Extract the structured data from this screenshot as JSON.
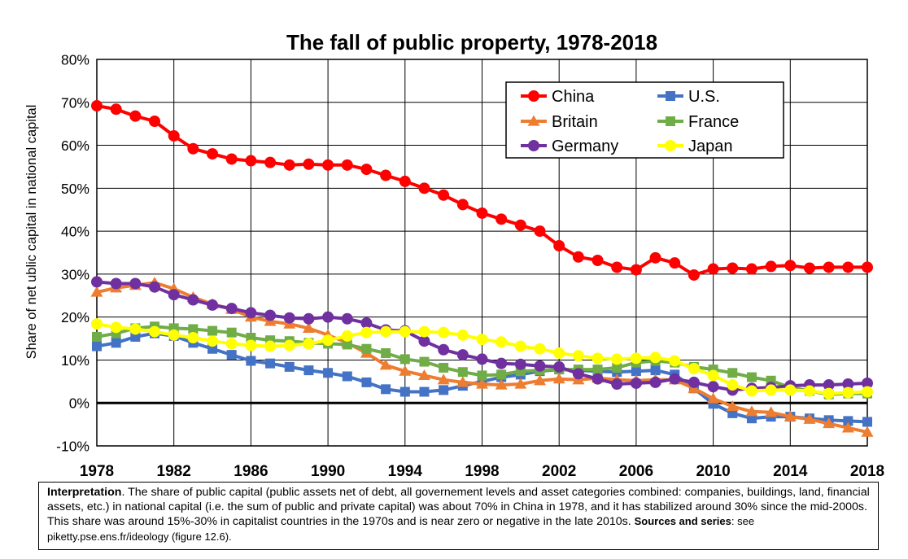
{
  "chart_data": {
    "type": "line",
    "title": "The fall of public property, 1978-2018",
    "ylabel": "Share of net ublic capital in national capital",
    "xlabel": "",
    "xlim": [
      1978,
      2018
    ],
    "ylim": [
      -10,
      80
    ],
    "x_ticks": [
      "1978",
      "1982",
      "1986",
      "1990",
      "1994",
      "1998",
      "2002",
      "2006",
      "2010",
      "2014",
      "2018"
    ],
    "y_ticks": [
      "-10%",
      "0%",
      "10%",
      "20%",
      "30%",
      "40%",
      "50%",
      "60%",
      "70%",
      "80%"
    ],
    "grid": true,
    "legend_position": "top-right",
    "x": [
      1978,
      1979,
      1980,
      1981,
      1982,
      1983,
      1984,
      1985,
      1986,
      1987,
      1988,
      1989,
      1990,
      1991,
      1992,
      1993,
      1994,
      1995,
      1996,
      1997,
      1998,
      1999,
      2000,
      2001,
      2002,
      2003,
      2004,
      2005,
      2006,
      2007,
      2008,
      2009,
      2010,
      2011,
      2012,
      2013,
      2014,
      2015,
      2016,
      2017,
      2018
    ],
    "series": [
      {
        "name": "China",
        "color": "#ff0000",
        "marker": "circle",
        "values": [
          69.2,
          68.4,
          66.8,
          65.6,
          62.2,
          59.2,
          58.0,
          56.8,
          56.4,
          56.0,
          55.4,
          55.6,
          55.4,
          55.4,
          54.4,
          53.0,
          51.6,
          50.0,
          48.4,
          46.2,
          44.2,
          42.8,
          41.4,
          40.0,
          36.6,
          34.0,
          33.2,
          31.6,
          31.0,
          33.8,
          32.6,
          29.8,
          31.2,
          31.4,
          31.2,
          31.8,
          32.0,
          31.4,
          31.6,
          31.6,
          31.6
        ]
      },
      {
        "name": "U.S.",
        "color": "#4472c4",
        "marker": "square",
        "values": [
          13.2,
          14.0,
          15.4,
          16.2,
          15.6,
          14.0,
          12.6,
          11.2,
          9.8,
          9.2,
          8.4,
          7.6,
          7.0,
          6.2,
          4.8,
          3.2,
          2.6,
          2.6,
          3.0,
          4.0,
          5.0,
          6.0,
          6.6,
          7.4,
          7.8,
          7.6,
          7.4,
          7.2,
          7.4,
          7.6,
          6.6,
          3.4,
          -0.2,
          -2.4,
          -3.6,
          -3.2,
          -3.2,
          -3.6,
          -4.0,
          -4.2,
          -4.4
        ]
      },
      {
        "name": "Britain",
        "color": "#ed7d31",
        "marker": "triangle",
        "values": [
          25.8,
          26.8,
          27.4,
          28.0,
          26.6,
          24.6,
          23.0,
          21.8,
          20.0,
          19.0,
          18.4,
          17.4,
          15.8,
          14.0,
          11.6,
          8.8,
          7.4,
          6.4,
          5.4,
          4.8,
          4.4,
          4.2,
          4.4,
          5.2,
          5.6,
          5.4,
          5.8,
          5.4,
          5.2,
          5.4,
          5.4,
          3.4,
          1.0,
          -0.8,
          -2.0,
          -2.2,
          -3.2,
          -3.8,
          -4.8,
          -5.8,
          -6.8
        ]
      },
      {
        "name": "France",
        "color": "#70ad47",
        "marker": "square",
        "values": [
          15.4,
          16.2,
          17.4,
          17.8,
          17.4,
          17.2,
          16.8,
          16.4,
          15.2,
          14.6,
          14.4,
          14.0,
          13.8,
          13.6,
          12.6,
          11.6,
          10.2,
          9.6,
          8.2,
          7.2,
          6.4,
          6.6,
          7.4,
          7.6,
          7.8,
          7.8,
          7.8,
          8.2,
          9.4,
          9.8,
          9.4,
          8.4,
          7.8,
          7.0,
          6.0,
          5.2,
          3.6,
          2.8,
          2.0,
          2.2,
          2.2
        ]
      },
      {
        "name": "Germany",
        "color": "#7030a0",
        "marker": "circle",
        "values": [
          28.2,
          27.8,
          27.8,
          27.0,
          25.2,
          24.0,
          22.8,
          22.0,
          21.0,
          20.4,
          19.8,
          19.6,
          20.0,
          19.6,
          18.6,
          17.0,
          16.8,
          14.4,
          12.4,
          11.2,
          10.2,
          9.2,
          9.0,
          8.6,
          8.4,
          6.8,
          5.6,
          4.4,
          4.6,
          4.8,
          5.6,
          4.8,
          3.8,
          3.0,
          3.4,
          3.6,
          4.0,
          4.2,
          4.2,
          4.4,
          4.6
        ]
      },
      {
        "name": "Japan",
        "color": "#ffff00",
        "marker": "circle",
        "values": [
          18.4,
          17.6,
          17.2,
          16.6,
          15.8,
          15.2,
          14.4,
          13.8,
          13.4,
          13.2,
          13.4,
          13.8,
          14.6,
          15.6,
          16.4,
          16.6,
          16.6,
          16.6,
          16.4,
          15.8,
          14.8,
          14.2,
          13.2,
          12.6,
          11.6,
          11.0,
          10.4,
          10.2,
          10.4,
          10.6,
          9.8,
          8.0,
          6.4,
          4.2,
          2.8,
          3.0,
          3.0,
          2.8,
          2.2,
          2.4,
          2.6
        ]
      }
    ]
  },
  "interpretation": {
    "label": "Interpretation",
    "text": ". The share of public capital (public assets net of debt, all governement levels and asset categories combined: companies, buildings, land, financial assets, etc.) in national capital (i.e. the sum of public and private capital) was about 70% in China in 1978, and it has stabilized around 30% since the mid-2000s. This share was around 15%-30% in capitalist countries in the 1970s and is near zero or negative in the late 2010s. ",
    "sources_label": "Sources and series",
    "sources_text": ": see piketty.pse.ens.fr/ideology (figure 12.6)."
  }
}
